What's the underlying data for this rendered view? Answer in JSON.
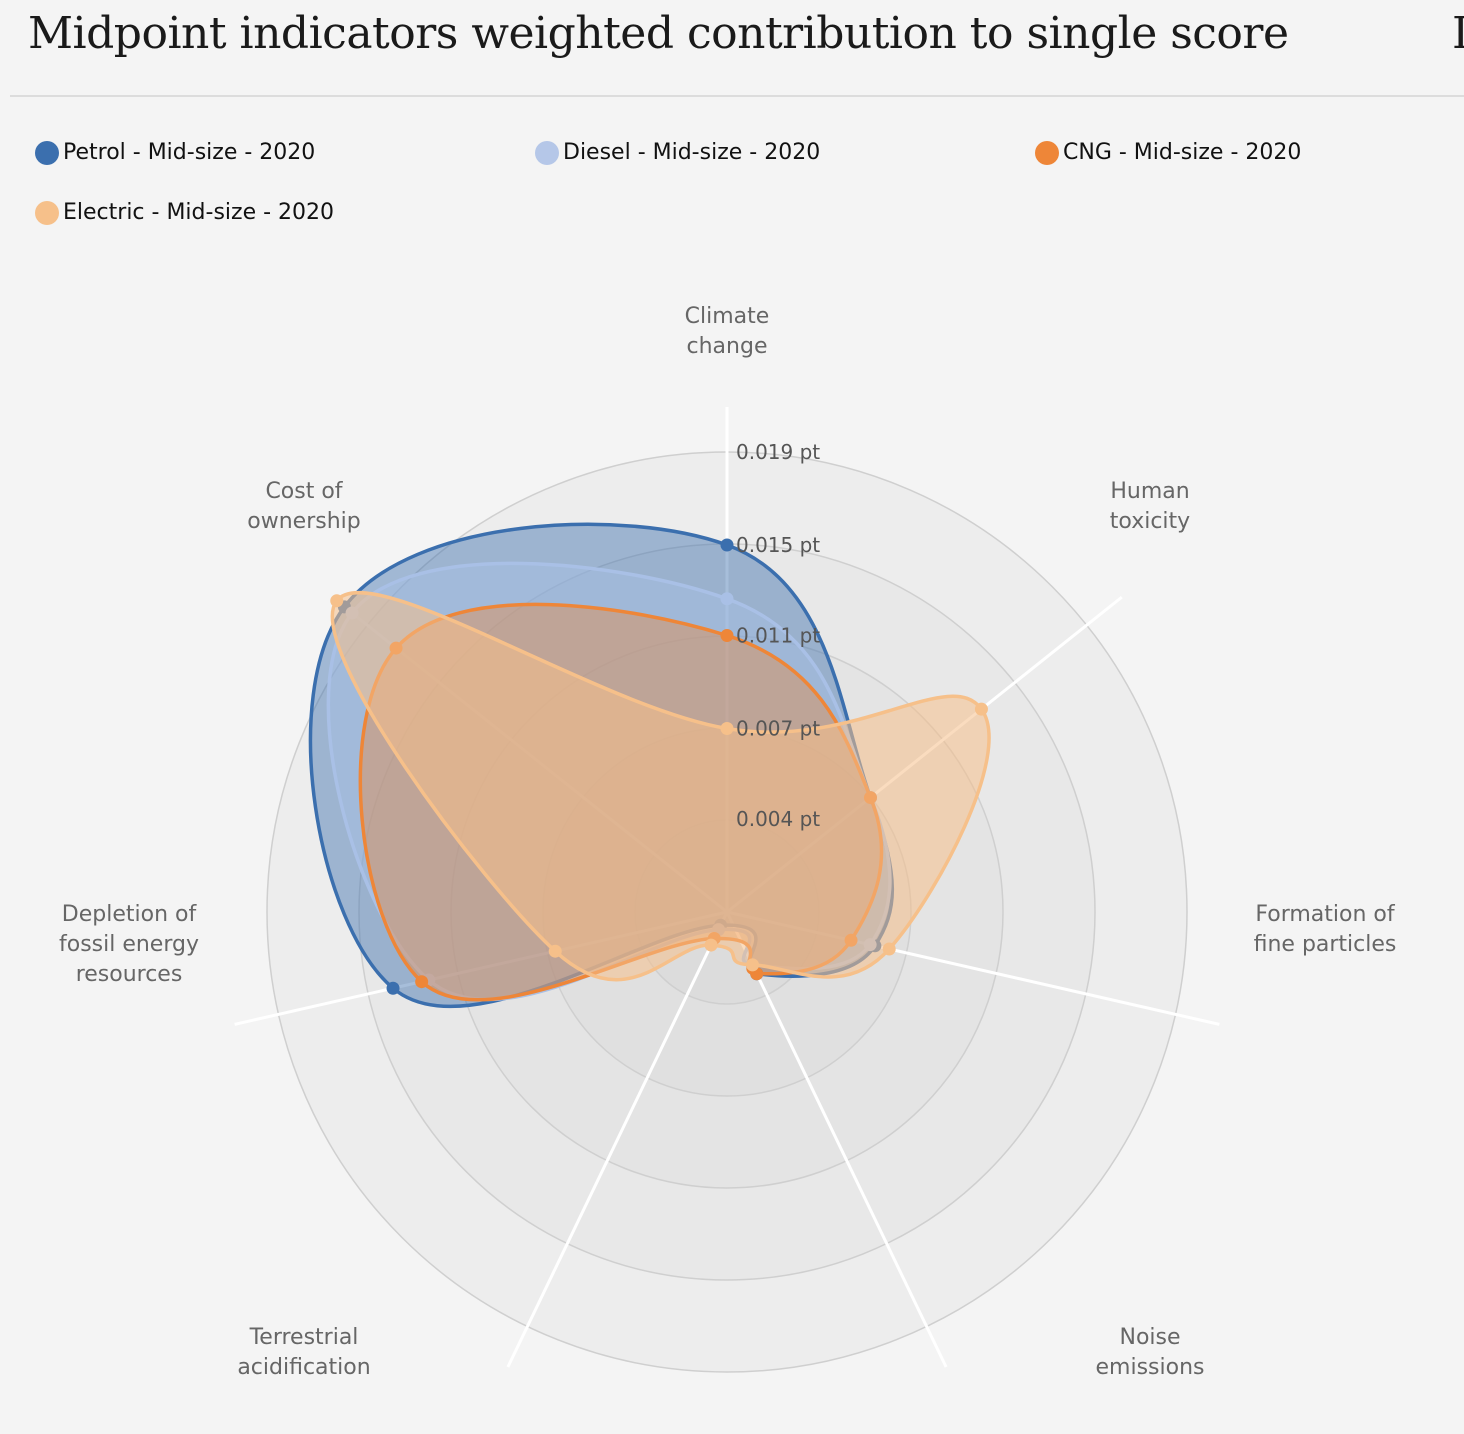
{
  "title": "Midpoint indicators weighted contribution to single score",
  "title_cut_char": "I",
  "legend": [
    {
      "label": "Petrol - Mid-size - 2020",
      "color": "#3b6fae"
    },
    {
      "label": "Diesel - Mid-size - 2020",
      "color": "#b5c7e8"
    },
    {
      "label": "CNG - Mid-size - 2020",
      "color": "#ee8638"
    },
    {
      "label": "Electric - Mid-size - 2020",
      "color": "#f6c08a"
    }
  ],
  "chart_data": {
    "type": "radar",
    "title": "Midpoint indicators weighted contribution to single score",
    "axes": [
      "Climate change",
      "Human toxicity",
      "Formation of fine particles",
      "Noise emissions",
      "Terrestrial acidification",
      "Depletion of fossil energy resources",
      "Cost of ownership"
    ],
    "tick_labels": [
      "0.004 pt",
      "0.007 pt",
      "0.011 pt",
      "0.015 pt",
      "0.019 pt"
    ],
    "ticks": [
      0.0038,
      0.0075,
      0.0113,
      0.015,
      0.0188
    ],
    "rmax": 0.0188,
    "series": [
      {
        "name": "Petrol - Mid-size - 2020",
        "color": "#3b6fae",
        "fill_opacity": 0.45,
        "values": [
          0.015,
          0.0075,
          0.0062,
          0.0028,
          0.0006,
          0.014,
          0.02
        ]
      },
      {
        "name": "Diesel - Mid-size - 2020",
        "color": "#a9c0e6",
        "fill_opacity": 0.45,
        "values": [
          0.0128,
          0.0075,
          0.006,
          0.0024,
          0.0008,
          0.0125,
          0.0196
        ]
      },
      {
        "name": "CNG - Mid-size - 2020",
        "color": "#ee8638",
        "fill_opacity": 0.4,
        "values": [
          0.0113,
          0.0075,
          0.0052,
          0.0028,
          0.0012,
          0.0128,
          0.0173
        ]
      },
      {
        "name": "Electric - Mid-size - 2020",
        "color": "#f6c08a",
        "fill_opacity": 0.55,
        "values": [
          0.0075,
          0.0133,
          0.0068,
          0.0024,
          0.0015,
          0.0072,
          0.0204
        ]
      }
    ],
    "grid": true,
    "legend_position": "top"
  }
}
